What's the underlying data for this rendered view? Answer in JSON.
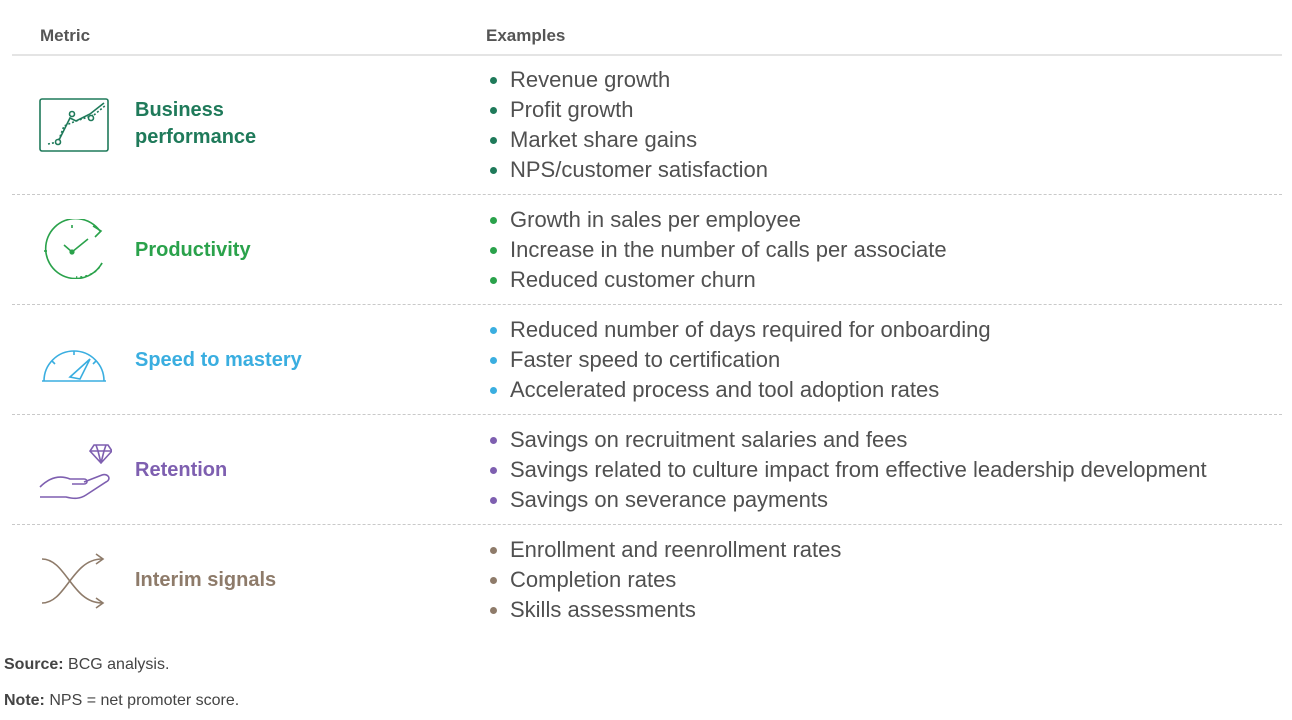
{
  "header": {
    "metric": "Metric",
    "examples": "Examples"
  },
  "colors": {
    "business": "#1f7a5a",
    "productivity": "#2aa24b",
    "speed": "#3aaee0",
    "retention": "#7e5fb0",
    "interim": "#8e7b6a"
  },
  "rows": [
    {
      "icon": "line-chart-icon",
      "label": "Business\nperformance",
      "examples": [
        "Revenue growth",
        "Profit growth",
        "Market share gains",
        "NPS/customer satisfaction"
      ]
    },
    {
      "icon": "clock-icon",
      "label": "Productivity",
      "examples": [
        "Growth in sales per employee",
        "Increase in the number of calls per associate",
        "Reduced customer churn"
      ]
    },
    {
      "icon": "speedometer-icon",
      "label": "Speed to mastery",
      "examples": [
        "Reduced number of days required for onboarding",
        "Faster speed to certification",
        "Accelerated process and tool adoption rates"
      ]
    },
    {
      "icon": "hand-diamond-icon",
      "label": "Retention",
      "examples": [
        "Savings on recruitment salaries and fees",
        "Savings related to culture impact from effective leadership development",
        "Savings on severance payments"
      ]
    },
    {
      "icon": "crossing-arrows-icon",
      "label": "Interim signals",
      "examples": [
        "Enrollment and reenrollment rates",
        "Completion rates",
        "Skills assessments"
      ]
    }
  ],
  "footer": {
    "source_label": "Source:",
    "source_text": "BCG analysis.",
    "note_label": "Note:",
    "note_text": "NPS = net promoter score."
  }
}
